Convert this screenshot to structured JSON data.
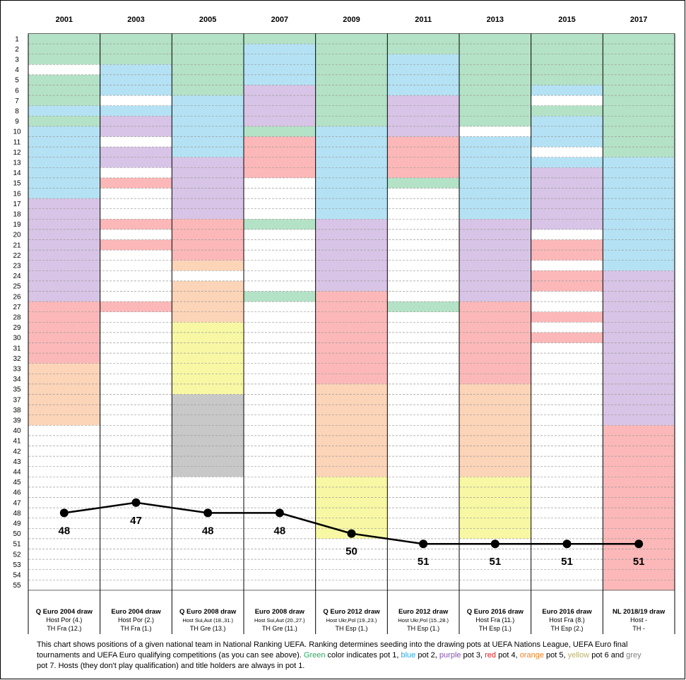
{
  "chart_data": {
    "type": "line",
    "categories": [
      "2001",
      "2003",
      "2005",
      "2007",
      "2009",
      "2011",
      "2013",
      "2015",
      "2017"
    ],
    "values": [
      48,
      47,
      48,
      48,
      50,
      51,
      51,
      51,
      51
    ],
    "row_labels": [
      "1",
      "2",
      "3",
      "4",
      "5",
      "6",
      "7",
      "8",
      "9",
      "10",
      "11",
      "12",
      "13",
      "14",
      "15",
      "16",
      "17",
      "18",
      "19",
      "20",
      "21",
      "22",
      "23",
      "24",
      "25",
      "26",
      "27",
      "28",
      "29",
      "30",
      "31",
      "32",
      "33",
      "34",
      "35",
      "37",
      "38",
      "39",
      "40",
      "41",
      "42",
      "43",
      "44",
      "45",
      "46",
      "47",
      "48",
      "49",
      "50",
      "51",
      "52",
      "53",
      "54",
      "55"
    ],
    "row_range": [
      1,
      54
    ],
    "grid": true,
    "pot_colors": {
      "1": "#b4e2c6",
      "2": "#b4e2f4",
      "3": "#d8c4e6",
      "4": "#fcb8b8",
      "5": "#fcd4b8",
      "6": "#f8f8a4",
      "7": "#c8c8c8"
    },
    "pots": [
      [
        [
          1,
          3,
          1
        ],
        [
          5,
          7,
          1
        ],
        [
          8,
          8,
          2
        ],
        [
          9,
          9,
          1
        ],
        [
          10,
          16,
          2
        ],
        [
          17,
          26,
          3
        ],
        [
          27,
          32,
          4
        ],
        [
          33,
          38,
          5
        ]
      ],
      [
        [
          1,
          3,
          1
        ],
        [
          4,
          6,
          2
        ],
        [
          8,
          8,
          2
        ],
        [
          9,
          10,
          3
        ],
        [
          12,
          13,
          3
        ],
        [
          15,
          15,
          4
        ],
        [
          19,
          19,
          4
        ],
        [
          21,
          21,
          4
        ],
        [
          27,
          27,
          4
        ]
      ],
      [
        [
          1,
          6,
          1
        ],
        [
          7,
          12,
          2
        ],
        [
          13,
          16,
          3
        ],
        [
          17,
          18,
          3
        ],
        [
          19,
          22,
          4
        ],
        [
          23,
          23,
          5
        ],
        [
          25,
          28,
          5
        ],
        [
          29,
          35,
          6
        ],
        [
          36,
          43,
          7
        ]
      ],
      [
        [
          1,
          1,
          1
        ],
        [
          2,
          5,
          2
        ],
        [
          6,
          9,
          3
        ],
        [
          10,
          10,
          1
        ],
        [
          11,
          14,
          4
        ],
        [
          19,
          19,
          1
        ],
        [
          26,
          26,
          1
        ]
      ],
      [
        [
          1,
          9,
          1
        ],
        [
          10,
          18,
          2
        ],
        [
          19,
          21,
          3
        ],
        [
          22,
          25,
          3
        ],
        [
          26,
          34,
          4
        ],
        [
          35,
          43,
          5
        ],
        [
          44,
          49,
          6
        ]
      ],
      [
        [
          1,
          2,
          1
        ],
        [
          3,
          6,
          2
        ],
        [
          7,
          10,
          3
        ],
        [
          11,
          14,
          4
        ],
        [
          15,
          15,
          1
        ],
        [
          27,
          27,
          1
        ]
      ],
      [
        [
          1,
          9,
          1
        ],
        [
          11,
          18,
          2
        ],
        [
          19,
          26,
          3
        ],
        [
          27,
          34,
          4
        ],
        [
          35,
          43,
          5
        ],
        [
          44,
          49,
          6
        ]
      ],
      [
        [
          1,
          5,
          1
        ],
        [
          6,
          6,
          2
        ],
        [
          8,
          8,
          1
        ],
        [
          9,
          11,
          2
        ],
        [
          13,
          13,
          2
        ],
        [
          14,
          19,
          3
        ],
        [
          21,
          22,
          4
        ],
        [
          24,
          25,
          4
        ],
        [
          28,
          28,
          4
        ],
        [
          30,
          30,
          4
        ]
      ],
      [
        [
          1,
          12,
          1
        ],
        [
          13,
          23,
          2
        ],
        [
          24,
          38,
          3
        ],
        [
          39,
          54,
          4
        ]
      ]
    ],
    "value_row_positions": [
      47,
      46,
      47,
      47,
      49,
      50,
      50,
      50,
      50
    ],
    "value_labels": [
      "48",
      "47",
      "48",
      "48",
      "50",
      "51",
      "51",
      "51",
      "51"
    ],
    "footer": [
      {
        "title": "Q Euro 2004 draw",
        "host": "Host Por (4.)",
        "th": "TH Fra (12.)",
        "small": false
      },
      {
        "title": "Euro 2004 draw",
        "host": "Host Por (2.)",
        "th": "TH Fra (1.)",
        "small": false
      },
      {
        "title": "Q Euro 2008 draw",
        "host": "Host Sui,Aut (18.,31.)",
        "th": "TH Gre (13.)",
        "small": true
      },
      {
        "title": "Euro 2008 draw",
        "host": "Host Sui,Aut (20.,27.)",
        "th": "TH Gre (11.)",
        "small": true
      },
      {
        "title": "Q Euro 2012 draw",
        "host": "Host Ukr,Pol (19.,23.)",
        "th": "TH Esp (1.)",
        "small": true
      },
      {
        "title": "Euro 2012 draw",
        "host": "Host Ukr,Pol (15.,28.)",
        "th": "TH Esp (1.)",
        "small": true
      },
      {
        "title": "Q Euro 2016 draw",
        "host": "Host Fra (11.)",
        "th": "TH Esp (1.)",
        "small": false
      },
      {
        "title": "Euro 2016 draw",
        "host": "Host Fra (8.)",
        "th": "TH Esp (2.)",
        "small": false
      },
      {
        "title": "NL 2018/19 draw",
        "host": "Host -",
        "th": "TH -",
        "small": false
      }
    ]
  },
  "description": {
    "part1": "This chart shows positions of a given national team in National Ranking UEFA. Ranking determines seeding into the drawing pots at UEFA Nations League, UEFA Euro final tournaments and UEFA Euro qualifying competitions (as you can see above). ",
    "green": "Green",
    "part2": " color indicates pot 1, ",
    "blue": "blue",
    "part3": " pot 2, ",
    "purple": "purple",
    "part4": " pot 3, ",
    "red": "red",
    "part5": " pot 4, ",
    "orange": "orange",
    "part6": " pot 5, ",
    "yellow": "yellow",
    "part7": " pot 6 and ",
    "grey": "grey",
    "part8": " pot 7. Hosts (they don't play qualification) and title holders are always in pot 1."
  }
}
